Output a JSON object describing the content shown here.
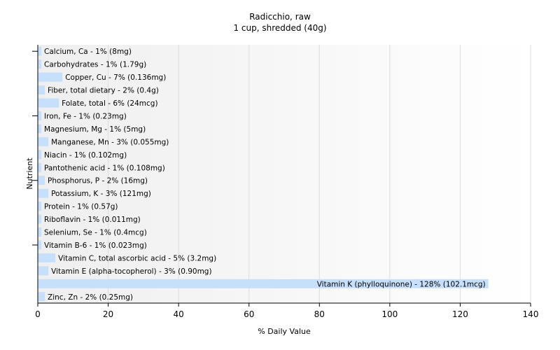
{
  "chart_data": {
    "type": "bar",
    "orientation": "horizontal",
    "title": "Radicchio, raw",
    "subtitle": "1 cup, shredded (40g)",
    "xlabel": "% Daily Value",
    "ylabel": "Nutrient",
    "xlim": [
      0,
      140
    ],
    "xticks": [
      0,
      20,
      40,
      60,
      80,
      100,
      120,
      140
    ],
    "grid": true,
    "bar_color": "#c6dffa",
    "categories": [
      "Calcium, Ca - 1% (8mg)",
      "Carbohydrates - 1% (1.79g)",
      "Copper, Cu - 7% (0.136mg)",
      "Fiber, total dietary - 2% (0.4g)",
      "Folate, total - 6% (24mcg)",
      "Iron, Fe - 1% (0.23mg)",
      "Magnesium, Mg - 1% (5mg)",
      "Manganese, Mn - 3% (0.055mg)",
      "Niacin - 1% (0.102mg)",
      "Pantothenic acid - 1% (0.108mg)",
      "Phosphorus, P - 2% (16mg)",
      "Potassium, K - 3% (121mg)",
      "Protein - 1% (0.57g)",
      "Riboflavin - 1% (0.011mg)",
      "Selenium, Se - 1% (0.4mcg)",
      "Vitamin B-6 - 1% (0.023mg)",
      "Vitamin C, total ascorbic acid - 5% (3.2mg)",
      "Vitamin E (alpha-tocopherol) - 3% (0.90mg)",
      "Vitamin K (phylloquinone) - 128% (102.1mcg)",
      "Zinc, Zn - 2% (0.25mg)"
    ],
    "values": [
      1,
      1,
      7,
      2,
      6,
      1,
      1,
      3,
      1,
      1,
      2,
      3,
      1,
      1,
      1,
      1,
      5,
      3,
      128,
      2
    ]
  }
}
